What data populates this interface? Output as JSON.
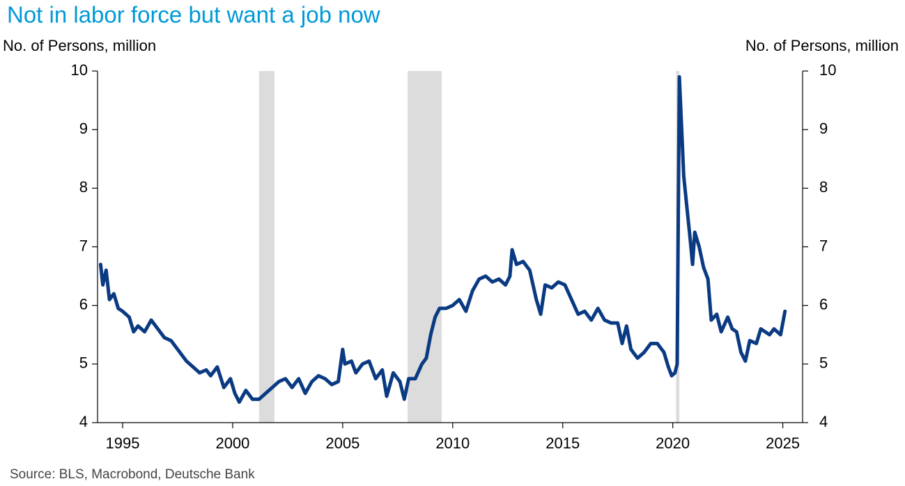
{
  "chart_data": {
    "type": "line",
    "title": "Not in labor force but want a job now",
    "y_label": "No. of Persons, million",
    "y2_label": "No. of Persons, million",
    "source": "Source: BLS, Macrobond, Deutsche Bank",
    "color": "#0a3a82",
    "shade_color": "#dcdcdc",
    "shaded_periods": [
      [
        2001.2,
        2001.9
      ],
      [
        2007.95,
        2009.5
      ],
      [
        2020.15,
        2020.3
      ]
    ],
    "x": [
      1994.0,
      1994.1,
      1994.25,
      1994.4,
      1994.6,
      1994.8,
      1995.0,
      1995.3,
      1995.5,
      1995.7,
      1996.0,
      1996.3,
      1996.6,
      1996.9,
      1997.2,
      1997.6,
      1997.9,
      1998.2,
      1998.5,
      1998.8,
      1999.0,
      1999.3,
      1999.6,
      1999.9,
      2000.1,
      2000.3,
      2000.6,
      2000.9,
      2001.2,
      2001.5,
      2001.8,
      2002.1,
      2002.4,
      2002.7,
      2003.0,
      2003.3,
      2003.6,
      2003.9,
      2004.2,
      2004.5,
      2004.8,
      2005.0,
      2005.1,
      2005.4,
      2005.6,
      2005.9,
      2006.2,
      2006.5,
      2006.8,
      2007.0,
      2007.3,
      2007.6,
      2007.8,
      2008.0,
      2008.3,
      2008.6,
      2008.8,
      2009.0,
      2009.2,
      2009.4,
      2009.7,
      2010.0,
      2010.3,
      2010.6,
      2010.9,
      2011.2,
      2011.5,
      2011.8,
      2012.1,
      2012.4,
      2012.6,
      2012.7,
      2012.9,
      2013.2,
      2013.5,
      2013.8,
      2014.0,
      2014.2,
      2014.5,
      2014.8,
      2015.1,
      2015.4,
      2015.7,
      2016.0,
      2016.3,
      2016.6,
      2016.9,
      2017.2,
      2017.5,
      2017.7,
      2017.9,
      2018.1,
      2018.4,
      2018.7,
      2019.0,
      2019.3,
      2019.6,
      2019.8,
      2019.95,
      2020.1,
      2020.2,
      2020.3,
      2020.5,
      2020.8,
      2020.9,
      2021.0,
      2021.2,
      2021.4,
      2021.6,
      2021.75,
      2022.0,
      2022.2,
      2022.5,
      2022.7,
      2022.9,
      2023.1,
      2023.3,
      2023.5,
      2023.8,
      2024.0,
      2024.2,
      2024.4,
      2024.6,
      2024.9,
      2025.1
    ],
    "values": [
      6.7,
      6.35,
      6.6,
      6.1,
      6.2,
      5.95,
      5.9,
      5.8,
      5.55,
      5.65,
      5.55,
      5.75,
      5.6,
      5.45,
      5.4,
      5.2,
      5.05,
      4.95,
      4.85,
      4.9,
      4.8,
      4.95,
      4.6,
      4.75,
      4.5,
      4.35,
      4.55,
      4.4,
      4.4,
      4.5,
      4.6,
      4.7,
      4.75,
      4.6,
      4.75,
      4.5,
      4.7,
      4.8,
      4.75,
      4.65,
      4.7,
      5.25,
      5.0,
      5.05,
      4.85,
      5.0,
      5.05,
      4.75,
      4.9,
      4.45,
      4.85,
      4.7,
      4.4,
      4.75,
      4.75,
      5.0,
      5.1,
      5.5,
      5.8,
      5.95,
      5.95,
      6.0,
      6.1,
      5.9,
      6.25,
      6.45,
      6.5,
      6.4,
      6.45,
      6.35,
      6.5,
      6.95,
      6.7,
      6.75,
      6.6,
      6.1,
      5.85,
      6.35,
      6.3,
      6.4,
      6.35,
      6.1,
      5.85,
      5.9,
      5.75,
      5.95,
      5.75,
      5.7,
      5.7,
      5.35,
      5.65,
      5.25,
      5.1,
      5.2,
      5.35,
      5.35,
      5.2,
      4.95,
      4.8,
      4.85,
      5.0,
      9.9,
      8.2,
      7.1,
      6.7,
      7.25,
      7.0,
      6.65,
      6.45,
      5.75,
      5.85,
      5.55,
      5.8,
      5.6,
      5.55,
      5.2,
      5.05,
      5.4,
      5.35,
      5.6,
      5.55,
      5.5,
      5.6,
      5.5,
      5.9
    ],
    "xlim": [
      1993.86,
      2025.9
    ],
    "xticks": [
      1995,
      2000,
      2005,
      2010,
      2015,
      2020,
      2025
    ],
    "ylim": [
      4,
      10
    ],
    "yticks": [
      4,
      5,
      6,
      7,
      8,
      9,
      10
    ],
    "y2lim": [
      4,
      10
    ],
    "y2ticks": [
      4,
      5,
      6,
      7,
      8,
      9,
      10
    ]
  }
}
